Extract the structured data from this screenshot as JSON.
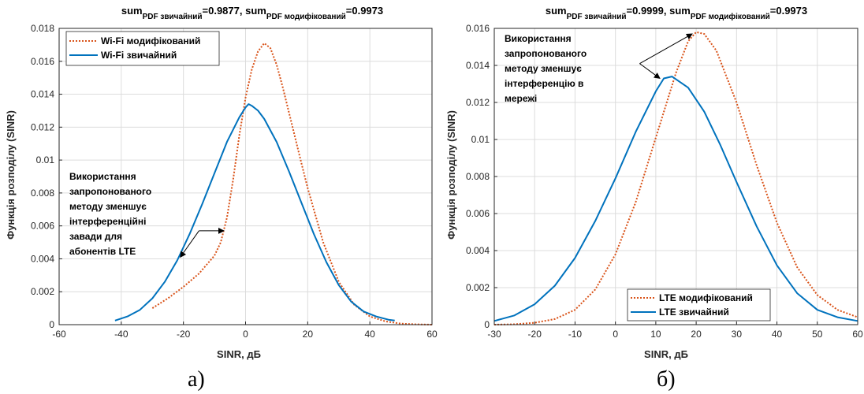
{
  "colors": {
    "modified": "#d95319",
    "ordinary": "#0072bd",
    "axes": "#262626",
    "grid": "#dcdcdc"
  },
  "chart_data": [
    {
      "type": "line",
      "panel": "a",
      "caption": "а)",
      "title_parts": [
        {
          "t": "sum",
          "sub": false
        },
        {
          "t": "PDF звичайний",
          "sub": true
        },
        {
          "t": "=0.9877, sum",
          "sub": false
        },
        {
          "t": "PDF модифікований",
          "sub": true
        },
        {
          "t": "=0.9973",
          "sub": false
        }
      ],
      "xlabel": "SINR, дБ",
      "ylabel": "Функція розподілу (SINR)",
      "xlim": [
        -60,
        60
      ],
      "ylim": [
        0,
        0.018
      ],
      "xticks": [
        -60,
        -40,
        -20,
        0,
        20,
        40,
        60
      ],
      "xtick_labels": [
        "-60",
        "-40",
        "-20",
        "0",
        "20",
        "40",
        "60"
      ],
      "yticks": [
        0,
        0.002,
        0.004,
        0.006,
        0.008,
        0.01,
        0.012,
        0.014,
        0.016,
        0.018
      ],
      "ytick_labels": [
        "0",
        "0.002",
        "0.004",
        "0.006",
        "0.008",
        "0.01",
        "0.012",
        "0.014",
        "0.016",
        "0.018"
      ],
      "grid": true,
      "legend_position": "top-left",
      "series": [
        {
          "name": "Wi-Fi модифікований",
          "style": "dotted",
          "color_key": "modified",
          "x": [
            -30,
            -25,
            -20,
            -15,
            -10,
            -8,
            -6,
            -4,
            -2,
            0,
            2,
            4,
            6,
            8,
            10,
            12,
            15,
            18,
            20,
            25,
            30,
            35,
            40,
            45,
            50,
            55,
            60
          ],
          "y": [
            0.001,
            0.0016,
            0.0023,
            0.0031,
            0.0042,
            0.005,
            0.0065,
            0.0088,
            0.0115,
            0.0138,
            0.0155,
            0.0166,
            0.0171,
            0.0168,
            0.0158,
            0.0144,
            0.0121,
            0.0098,
            0.0083,
            0.005,
            0.0026,
            0.0012,
            0.0005,
            0.0002,
            6e-05,
            2e-05,
            0.0
          ]
        },
        {
          "name": "Wi-Fi звичайний",
          "style": "solid",
          "color_key": "ordinary",
          "x": [
            -42,
            -38,
            -34,
            -30,
            -26,
            -22,
            -18,
            -14,
            -10,
            -6,
            -2,
            0,
            1,
            2,
            4,
            6,
            10,
            14,
            18,
            22,
            26,
            30,
            34,
            38,
            42,
            46,
            48
          ],
          "y": [
            0.00025,
            0.0005,
            0.0009,
            0.0016,
            0.0026,
            0.0039,
            0.0055,
            0.0073,
            0.0092,
            0.0111,
            0.0126,
            0.0132,
            0.0134,
            0.0133,
            0.013,
            0.0125,
            0.0111,
            0.0093,
            0.0074,
            0.0055,
            0.0038,
            0.0024,
            0.0014,
            0.0008,
            0.0005,
            0.0003,
            0.00025
          ]
        }
      ],
      "annotation": {
        "lines": [
          "Використання",
          "запропонованого",
          "методу зменшує",
          "інтерференційні",
          "завади для",
          "абонентів LTE"
        ],
        "targets": [
          [
            -7,
            0.0057
          ],
          [
            -21,
            0.0041
          ]
        ],
        "tail": [
          -15,
          0.0057
        ]
      }
    },
    {
      "type": "line",
      "panel": "б",
      "caption": "б)",
      "title_parts": [
        {
          "t": "sum",
          "sub": false
        },
        {
          "t": "PDF звичайний",
          "sub": true
        },
        {
          "t": "=0.9999, sum",
          "sub": false
        },
        {
          "t": "PDF модифікований",
          "sub": true
        },
        {
          "t": "=0.9973",
          "sub": false
        }
      ],
      "xlabel": "SINR, дБ",
      "ylabel": "Функція розподілу (SINR)",
      "xlim": [
        -30,
        60
      ],
      "ylim": [
        0,
        0.016
      ],
      "xticks": [
        -30,
        -20,
        -10,
        0,
        10,
        20,
        30,
        40,
        50,
        60
      ],
      "xtick_labels": [
        "-30",
        "-20",
        "-10",
        "0",
        "10",
        "20",
        "30",
        "40",
        "50",
        "60"
      ],
      "yticks": [
        0,
        0.002,
        0.004,
        0.006,
        0.008,
        0.01,
        0.012,
        0.014,
        0.016
      ],
      "ytick_labels": [
        "0",
        "0.002",
        "0.004",
        "0.006",
        "0.008",
        "0.01",
        "0.012",
        "0.014",
        "0.016"
      ],
      "grid": true,
      "legend_position": "bottom-right",
      "series": [
        {
          "name": "LTE модифікований",
          "style": "dotted",
          "color_key": "modified",
          "x": [
            -30,
            -25,
            -20,
            -15,
            -10,
            -5,
            0,
            5,
            10,
            15,
            18,
            20,
            22,
            25,
            30,
            35,
            40,
            45,
            50,
            55,
            60
          ],
          "y": [
            0.0,
            2e-05,
            0.0001,
            0.0003,
            0.0008,
            0.0019,
            0.0038,
            0.0066,
            0.0101,
            0.0136,
            0.0153,
            0.0158,
            0.0157,
            0.0148,
            0.012,
            0.0086,
            0.0055,
            0.0031,
            0.0016,
            0.0008,
            0.0004
          ]
        },
        {
          "name": "LTE звичайний",
          "style": "solid",
          "color_key": "ordinary",
          "x": [
            -30,
            -25,
            -20,
            -15,
            -10,
            -5,
            0,
            5,
            10,
            12,
            14,
            18,
            22,
            26,
            30,
            35,
            40,
            45,
            50,
            55,
            60
          ],
          "y": [
            0.0002,
            0.0005,
            0.0011,
            0.0021,
            0.0036,
            0.0056,
            0.0079,
            0.0104,
            0.0126,
            0.0133,
            0.0134,
            0.0128,
            0.0115,
            0.0097,
            0.0077,
            0.0053,
            0.0032,
            0.0017,
            0.0008,
            0.0004,
            0.0002
          ]
        }
      ],
      "annotation": {
        "lines": [
          "Використання",
          "запропонованого",
          "методу зменшує",
          "інтерференцію в",
          "мережі"
        ],
        "targets": [
          [
            11,
            0.0133
          ],
          [
            19,
            0.0157
          ]
        ],
        "tail": [
          6,
          0.0141
        ]
      }
    }
  ]
}
